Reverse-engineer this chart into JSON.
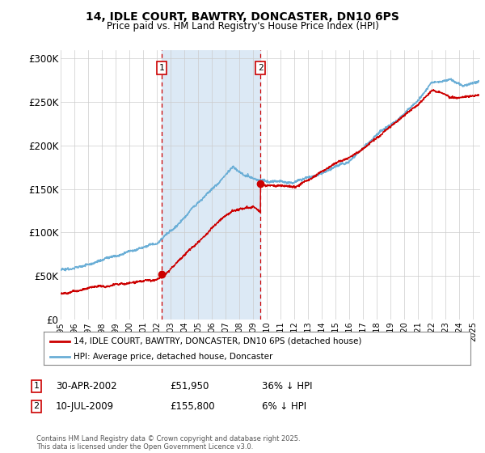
{
  "title_line1": "14, IDLE COURT, BAWTRY, DONCASTER, DN10 6PS",
  "title_line2": "Price paid vs. HM Land Registry's House Price Index (HPI)",
  "ylabel_ticks": [
    "£0",
    "£50K",
    "£100K",
    "£150K",
    "£200K",
    "£250K",
    "£300K"
  ],
  "ytick_values": [
    0,
    50000,
    100000,
    150000,
    200000,
    250000,
    300000
  ],
  "ylim": [
    0,
    310000
  ],
  "xlim_start": 1995.0,
  "xlim_end": 2025.5,
  "hpi_color": "#6aaed6",
  "price_color": "#cc0000",
  "sale1_date": 2002.33,
  "sale1_price": 51950,
  "sale2_date": 2009.53,
  "sale2_price": 155800,
  "shade_color": "#dce9f5",
  "grid_color": "#cccccc",
  "legend_line1": "14, IDLE COURT, BAWTRY, DONCASTER, DN10 6PS (detached house)",
  "legend_line2": "HPI: Average price, detached house, Doncaster",
  "table_row1": [
    "1",
    "30-APR-2002",
    "£51,950",
    "36% ↓ HPI"
  ],
  "table_row2": [
    "2",
    "10-JUL-2009",
    "£155,800",
    "6% ↓ HPI"
  ],
  "footnote": "Contains HM Land Registry data © Crown copyright and database right 2025.\nThis data is licensed under the Open Government Licence v3.0.",
  "background_color": "#ffffff",
  "box_color": "#cc0000"
}
